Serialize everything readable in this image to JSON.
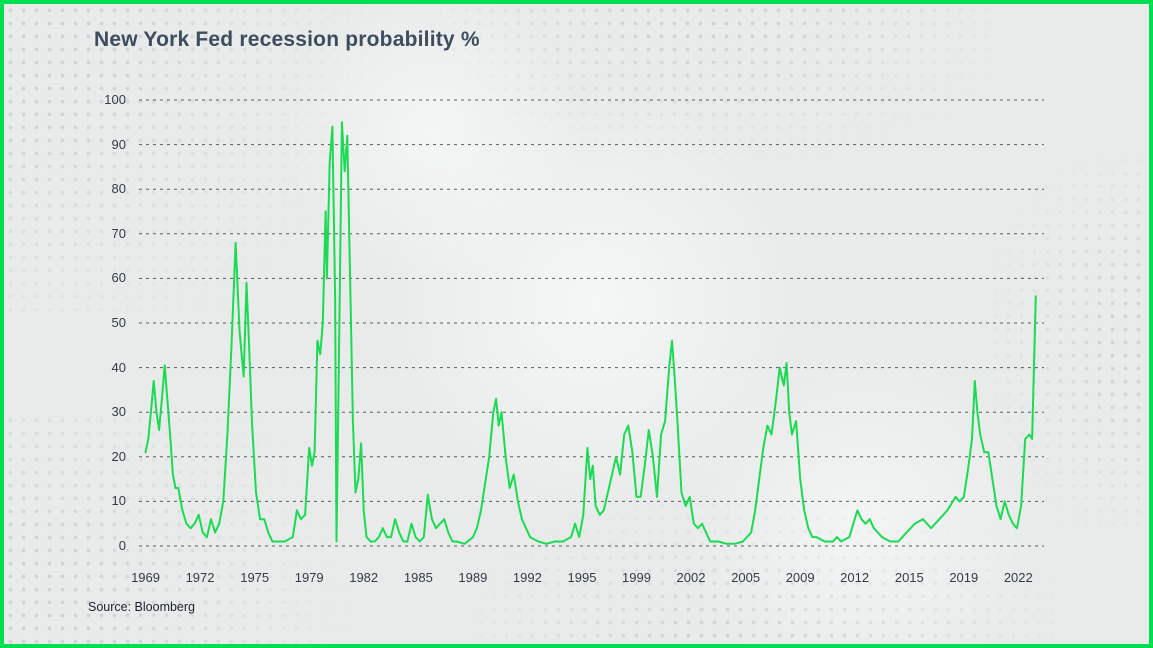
{
  "page": {
    "title": "New York Fed recession probability %",
    "source": "Source: Bloomberg"
  },
  "colors": {
    "border_green": "#00df4f",
    "line_green": "#1bdb52",
    "title": "#3d4c5e",
    "axis_text": "#323c46",
    "grid": "#474e55",
    "background": "#e9ebeb"
  },
  "chart_data": {
    "type": "line",
    "title": "New York Fed recession probability %",
    "xlabel": "",
    "ylabel": "",
    "source": "Source: Bloomberg",
    "legend": "none",
    "grid": "horizontal-dashed",
    "ylim": [
      0,
      100
    ],
    "xlim": [
      1968.6,
      2023.9
    ],
    "y_ticks": [
      0,
      10,
      20,
      30,
      40,
      50,
      60,
      70,
      80,
      90,
      100
    ],
    "x_ticks": [
      {
        "label": "1969",
        "year": 1969
      },
      {
        "label": "1972",
        "year": 1972.33
      },
      {
        "label": "1975",
        "year": 1975.67
      },
      {
        "label": "1979",
        "year": 1979
      },
      {
        "label": "1982",
        "year": 1982.33
      },
      {
        "label": "1985",
        "year": 1985.67
      },
      {
        "label": "1989",
        "year": 1989
      },
      {
        "label": "1992",
        "year": 1992.33
      },
      {
        "label": "1995",
        "year": 1995.67
      },
      {
        "label": "1999",
        "year": 1999
      },
      {
        "label": "2002",
        "year": 2002.33
      },
      {
        "label": "2005",
        "year": 2005.67
      },
      {
        "label": "2009",
        "year": 2009
      },
      {
        "label": "2012",
        "year": 2012.33
      },
      {
        "label": "2015",
        "year": 2015.67
      },
      {
        "label": "2019",
        "year": 2019
      },
      {
        "label": "2022",
        "year": 2022.33
      }
    ],
    "series": [
      {
        "name": "NY Fed recession probability %",
        "color": "#1bdb52",
        "points": [
          [
            1969.0,
            21
          ],
          [
            1969.17,
            24
          ],
          [
            1969.33,
            30
          ],
          [
            1969.5,
            37
          ],
          [
            1969.67,
            30
          ],
          [
            1969.83,
            26
          ],
          [
            1970.0,
            33
          ],
          [
            1970.17,
            40.5
          ],
          [
            1970.33,
            33
          ],
          [
            1970.5,
            25
          ],
          [
            1970.67,
            16
          ],
          [
            1970.83,
            13
          ],
          [
            1971.0,
            13
          ],
          [
            1971.25,
            8
          ],
          [
            1971.5,
            5
          ],
          [
            1971.75,
            4
          ],
          [
            1972.0,
            5
          ],
          [
            1972.25,
            7
          ],
          [
            1972.5,
            3
          ],
          [
            1972.75,
            2
          ],
          [
            1973.0,
            6
          ],
          [
            1973.25,
            3
          ],
          [
            1973.5,
            5
          ],
          [
            1973.75,
            10
          ],
          [
            1974.0,
            25
          ],
          [
            1974.25,
            45
          ],
          [
            1974.5,
            68
          ],
          [
            1974.75,
            48
          ],
          [
            1975.0,
            38
          ],
          [
            1975.17,
            59
          ],
          [
            1975.33,
            45
          ],
          [
            1975.5,
            28
          ],
          [
            1975.75,
            12
          ],
          [
            1976.0,
            6
          ],
          [
            1976.25,
            6
          ],
          [
            1976.5,
            3
          ],
          [
            1976.75,
            1
          ],
          [
            1977.0,
            1
          ],
          [
            1977.5,
            1
          ],
          [
            1978.0,
            2
          ],
          [
            1978.25,
            8
          ],
          [
            1978.5,
            6
          ],
          [
            1978.75,
            7
          ],
          [
            1979.0,
            22
          ],
          [
            1979.17,
            18
          ],
          [
            1979.33,
            21
          ],
          [
            1979.5,
            46
          ],
          [
            1979.67,
            43
          ],
          [
            1979.83,
            50
          ],
          [
            1980.0,
            75
          ],
          [
            1980.08,
            60
          ],
          [
            1980.25,
            86
          ],
          [
            1980.42,
            94
          ],
          [
            1980.58,
            56
          ],
          [
            1980.67,
            1
          ],
          [
            1980.83,
            45
          ],
          [
            1981.0,
            95
          ],
          [
            1981.17,
            84
          ],
          [
            1981.33,
            92
          ],
          [
            1981.5,
            60
          ],
          [
            1981.67,
            28
          ],
          [
            1981.83,
            12
          ],
          [
            1982.0,
            15
          ],
          [
            1982.17,
            23
          ],
          [
            1982.33,
            8
          ],
          [
            1982.5,
            2
          ],
          [
            1982.75,
            1
          ],
          [
            1983.0,
            1
          ],
          [
            1983.25,
            2
          ],
          [
            1983.5,
            4
          ],
          [
            1983.75,
            2
          ],
          [
            1984.0,
            2
          ],
          [
            1984.25,
            6
          ],
          [
            1984.5,
            3
          ],
          [
            1984.75,
            1
          ],
          [
            1985.0,
            1
          ],
          [
            1985.25,
            5
          ],
          [
            1985.5,
            2
          ],
          [
            1985.75,
            1
          ],
          [
            1986.0,
            2
          ],
          [
            1986.25,
            11.5
          ],
          [
            1986.5,
            6
          ],
          [
            1986.75,
            4
          ],
          [
            1987.0,
            5
          ],
          [
            1987.25,
            6
          ],
          [
            1987.5,
            3
          ],
          [
            1987.75,
            1
          ],
          [
            1988.0,
            1
          ],
          [
            1988.5,
            0.5
          ],
          [
            1989.0,
            2
          ],
          [
            1989.25,
            4
          ],
          [
            1989.5,
            8
          ],
          [
            1989.75,
            14
          ],
          [
            1990.0,
            20
          ],
          [
            1990.25,
            30
          ],
          [
            1990.42,
            33
          ],
          [
            1990.58,
            27
          ],
          [
            1990.75,
            30
          ],
          [
            1991.0,
            20
          ],
          [
            1991.25,
            13
          ],
          [
            1991.5,
            16
          ],
          [
            1991.75,
            10
          ],
          [
            1992.0,
            6
          ],
          [
            1992.25,
            4
          ],
          [
            1992.5,
            2
          ],
          [
            1993.0,
            1
          ],
          [
            1993.5,
            0.5
          ],
          [
            1994.0,
            1
          ],
          [
            1994.5,
            1
          ],
          [
            1995.0,
            2
          ],
          [
            1995.25,
            5
          ],
          [
            1995.5,
            2
          ],
          [
            1995.75,
            7
          ],
          [
            1996.0,
            22
          ],
          [
            1996.17,
            15
          ],
          [
            1996.33,
            18
          ],
          [
            1996.5,
            9
          ],
          [
            1996.75,
            7
          ],
          [
            1997.0,
            8
          ],
          [
            1997.25,
            12
          ],
          [
            1997.5,
            16
          ],
          [
            1997.75,
            20
          ],
          [
            1998.0,
            16
          ],
          [
            1998.25,
            25
          ],
          [
            1998.5,
            27
          ],
          [
            1998.75,
            21
          ],
          [
            1999.0,
            11
          ],
          [
            1999.25,
            11
          ],
          [
            1999.5,
            18
          ],
          [
            1999.75,
            26
          ],
          [
            2000.0,
            20
          ],
          [
            2000.25,
            11
          ],
          [
            2000.5,
            25
          ],
          [
            2000.75,
            28
          ],
          [
            2001.0,
            40
          ],
          [
            2001.17,
            46
          ],
          [
            2001.33,
            38
          ],
          [
            2001.5,
            28
          ],
          [
            2001.75,
            12
          ],
          [
            2002.0,
            9
          ],
          [
            2002.25,
            11
          ],
          [
            2002.5,
            5
          ],
          [
            2002.75,
            4
          ],
          [
            2003.0,
            5
          ],
          [
            2003.25,
            3
          ],
          [
            2003.5,
            1
          ],
          [
            2004.0,
            1
          ],
          [
            2004.5,
            0.5
          ],
          [
            2005.0,
            0.5
          ],
          [
            2005.5,
            1
          ],
          [
            2006.0,
            3
          ],
          [
            2006.25,
            8
          ],
          [
            2006.5,
            15
          ],
          [
            2006.75,
            22
          ],
          [
            2007.0,
            27
          ],
          [
            2007.25,
            25
          ],
          [
            2007.5,
            32
          ],
          [
            2007.75,
            40
          ],
          [
            2008.0,
            36
          ],
          [
            2008.17,
            41
          ],
          [
            2008.33,
            30
          ],
          [
            2008.5,
            25
          ],
          [
            2008.75,
            28
          ],
          [
            2009.0,
            15
          ],
          [
            2009.25,
            8
          ],
          [
            2009.5,
            4
          ],
          [
            2009.75,
            2
          ],
          [
            2010.0,
            2
          ],
          [
            2010.5,
            1
          ],
          [
            2011.0,
            1
          ],
          [
            2011.25,
            2
          ],
          [
            2011.5,
            1
          ],
          [
            2012.0,
            2
          ],
          [
            2012.25,
            5
          ],
          [
            2012.5,
            8
          ],
          [
            2012.75,
            6
          ],
          [
            2013.0,
            5
          ],
          [
            2013.25,
            6
          ],
          [
            2013.5,
            4
          ],
          [
            2013.75,
            3
          ],
          [
            2014.0,
            2
          ],
          [
            2014.5,
            1
          ],
          [
            2015.0,
            1
          ],
          [
            2015.25,
            2
          ],
          [
            2015.5,
            3
          ],
          [
            2015.75,
            4
          ],
          [
            2016.0,
            5
          ],
          [
            2016.5,
            6
          ],
          [
            2017.0,
            4
          ],
          [
            2017.5,
            6
          ],
          [
            2018.0,
            8
          ],
          [
            2018.5,
            11
          ],
          [
            2018.75,
            10
          ],
          [
            2019.0,
            11
          ],
          [
            2019.25,
            17
          ],
          [
            2019.5,
            24
          ],
          [
            2019.67,
            37
          ],
          [
            2019.83,
            30
          ],
          [
            2020.0,
            25
          ],
          [
            2020.25,
            21
          ],
          [
            2020.5,
            21
          ],
          [
            2020.75,
            15
          ],
          [
            2021.0,
            9
          ],
          [
            2021.25,
            6
          ],
          [
            2021.5,
            10
          ],
          [
            2021.75,
            7
          ],
          [
            2022.0,
            5
          ],
          [
            2022.25,
            4
          ],
          [
            2022.5,
            9
          ],
          [
            2022.75,
            24
          ],
          [
            2023.0,
            25
          ],
          [
            2023.17,
            24
          ],
          [
            2023.4,
            56
          ]
        ]
      }
    ]
  }
}
